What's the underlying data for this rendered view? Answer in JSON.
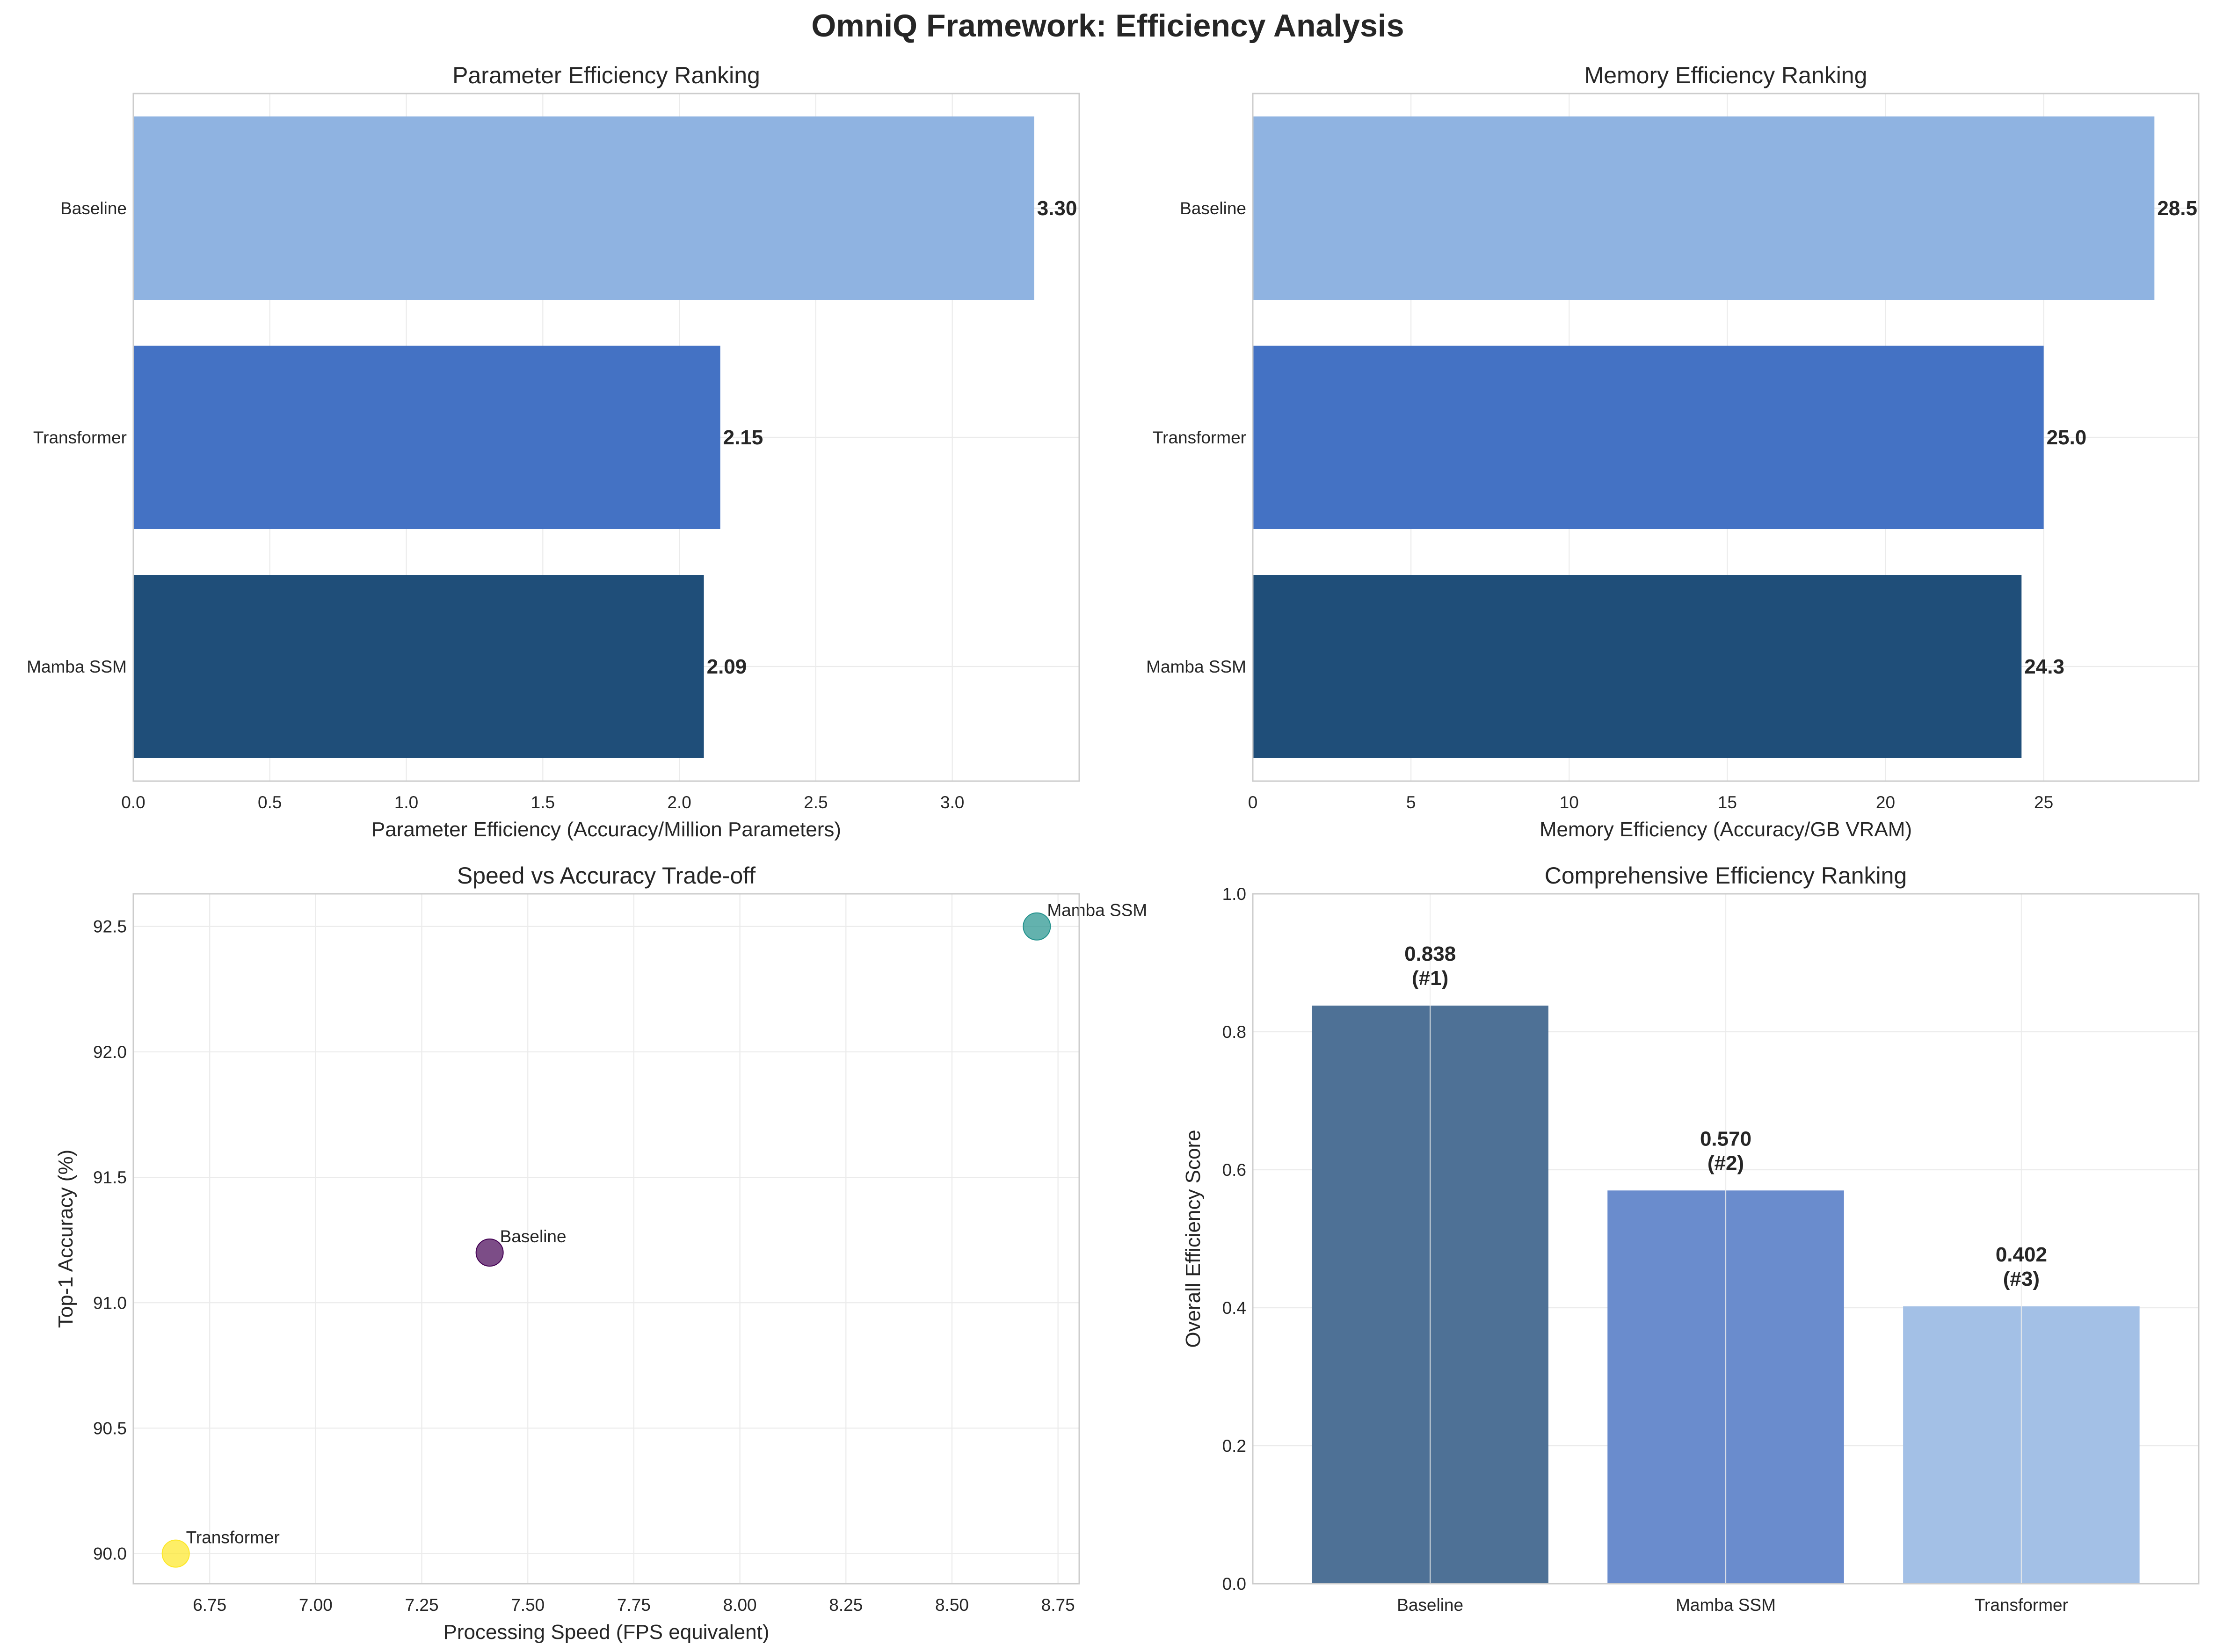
{
  "title": "OmniQ Framework: Efficiency Analysis",
  "chart_data": [
    {
      "type": "bar",
      "orientation": "horizontal",
      "title": "Parameter Efficiency Ranking",
      "xlabel": "Parameter Efficiency (Accuracy/Million Parameters)",
      "ylabel": "",
      "categories": [
        "Baseline",
        "Transformer",
        "Mamba SSM"
      ],
      "values": [
        3.3,
        2.15,
        2.09
      ],
      "value_labels": [
        "3.30",
        "2.15",
        "2.09"
      ],
      "colors": [
        "#8fb3e1",
        "#4472c4",
        "#1f4e79"
      ],
      "xlim": [
        0,
        3.465
      ],
      "xticks": [
        0.0,
        0.5,
        1.0,
        1.5,
        2.0,
        2.5,
        3.0
      ],
      "xtick_labels": [
        "0.0",
        "0.5",
        "1.0",
        "1.5",
        "2.0",
        "2.5",
        "3.0"
      ],
      "grid": true
    },
    {
      "type": "bar",
      "orientation": "horizontal",
      "title": "Memory Efficiency Ranking",
      "xlabel": "Memory Efficiency (Accuracy/GB VRAM)",
      "ylabel": "",
      "categories": [
        "Baseline",
        "Transformer",
        "Mamba SSM"
      ],
      "values": [
        28.5,
        25.0,
        24.3
      ],
      "value_labels": [
        "28.5",
        "25.0",
        "24.3"
      ],
      "colors": [
        "#8fb3e1",
        "#4472c4",
        "#1f4e79"
      ],
      "xlim": [
        0,
        29.9
      ],
      "xticks": [
        0,
        5,
        10,
        15,
        20,
        25
      ],
      "xtick_labels": [
        "0",
        "5",
        "10",
        "15",
        "20",
        "25"
      ],
      "grid": true
    },
    {
      "type": "scatter",
      "title": "Speed vs Accuracy Trade-off",
      "xlabel": "Processing Speed (FPS equivalent)",
      "ylabel": "Top-1 Accuracy (%)",
      "points": [
        {
          "label": "Baseline",
          "x": 7.41,
          "y": 91.2,
          "color": "#440154"
        },
        {
          "label": "Mamba SSM",
          "x": 8.7,
          "y": 92.5,
          "color": "#21918c"
        },
        {
          "label": "Transformer",
          "x": 6.67,
          "y": 90.0,
          "color": "#fde725"
        }
      ],
      "xlim": [
        6.57,
        8.8
      ],
      "ylim": [
        89.88,
        92.63
      ],
      "xticks": [
        6.75,
        7.0,
        7.25,
        7.5,
        7.75,
        8.0,
        8.25,
        8.5,
        8.75
      ],
      "xtick_labels": [
        "6.75",
        "7.00",
        "7.25",
        "7.50",
        "7.75",
        "8.00",
        "8.25",
        "8.50",
        "8.75"
      ],
      "yticks": [
        90.0,
        90.5,
        91.0,
        91.5,
        92.0,
        92.5
      ],
      "ytick_labels": [
        "90.0",
        "90.5",
        "91.0",
        "91.5",
        "92.0",
        "92.5"
      ],
      "grid": true
    },
    {
      "type": "bar",
      "title": "Comprehensive Efficiency Ranking",
      "xlabel": "",
      "ylabel": "Overall Efficiency Score",
      "categories": [
        "Baseline",
        "Mamba SSM",
        "Transformer"
      ],
      "values": [
        0.838,
        0.57,
        0.402
      ],
      "value_labels": [
        "0.838",
        "0.570",
        "0.402"
      ],
      "rank_labels": [
        "(#1)",
        "(#2)",
        "(#3)"
      ],
      "colors": [
        "#4e7196",
        "#6a8ccd",
        "#a3c0e6"
      ],
      "ylim": [
        0,
        1.0
      ],
      "yticks": [
        0.0,
        0.2,
        0.4,
        0.6,
        0.8,
        1.0
      ],
      "ytick_labels": [
        "0.0",
        "0.2",
        "0.4",
        "0.6",
        "0.8",
        "1.0"
      ],
      "grid": true
    }
  ]
}
